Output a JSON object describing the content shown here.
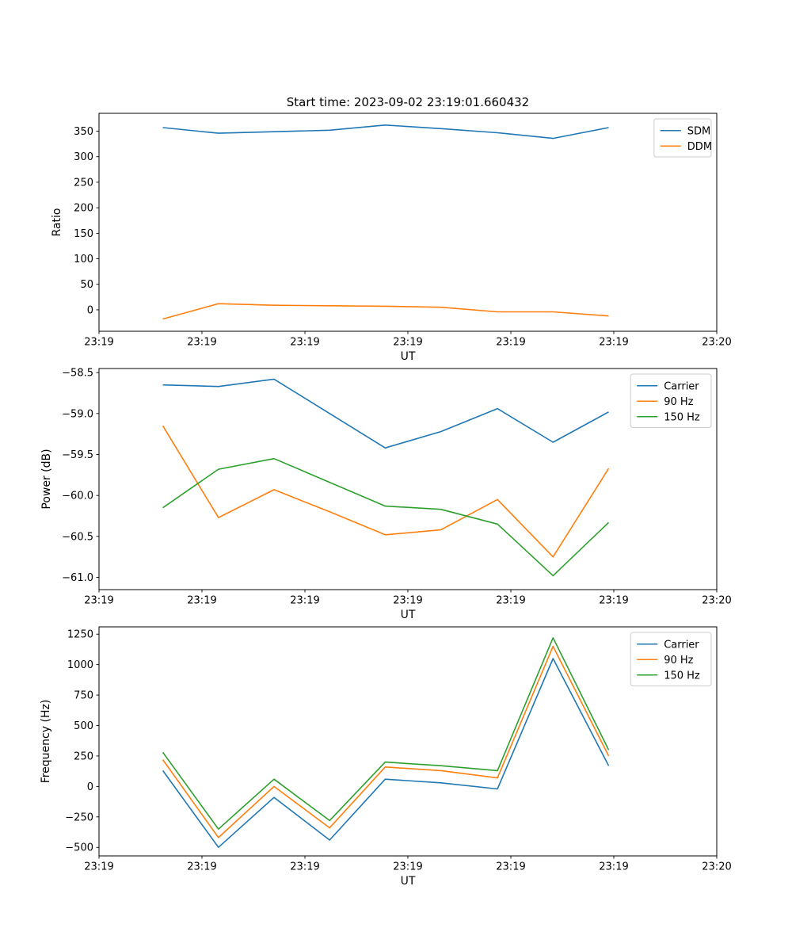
{
  "figure": {
    "title": "Start time: 2023-09-02 23:19:01.660432",
    "background_color": "#ffffff"
  },
  "chart_data": [
    {
      "name": "ratio",
      "type": "line",
      "title": "Start time: 2023-09-02 23:19:01.660432",
      "xlabel": "UT",
      "ylabel": "Ratio",
      "xlim": [
        0,
        60
      ],
      "ylim": [
        -42,
        385
      ],
      "grid": false,
      "x": [
        6.2,
        11.6,
        17.0,
        22.4,
        27.8,
        33.2,
        38.7,
        44.1,
        49.5
      ],
      "xticks": {
        "values": [
          0,
          10,
          20,
          30,
          40,
          50,
          60
        ],
        "labels": [
          "23:19",
          "23:19",
          "23:19",
          "23:19",
          "23:19",
          "23:19",
          "23:20"
        ]
      },
      "yticks": {
        "values": [
          0,
          50,
          100,
          150,
          200,
          250,
          300,
          350
        ],
        "labels": [
          "0",
          "50",
          "100",
          "150",
          "200",
          "250",
          "300",
          "350"
        ]
      },
      "legend": {
        "position": "upper right",
        "entries": [
          "SDM",
          "DDM"
        ]
      },
      "series": [
        {
          "name": "SDM",
          "color": "#1f77b4",
          "values": [
            357,
            346,
            349,
            352,
            362,
            355,
            347,
            336,
            357
          ]
        },
        {
          "name": "DDM",
          "color": "#ff7f0e",
          "values": [
            -18,
            12,
            9,
            8,
            7,
            5,
            -4,
            -4,
            -12
          ]
        }
      ]
    },
    {
      "name": "power",
      "type": "line",
      "title": "",
      "xlabel": "UT",
      "ylabel": "Power (dB)",
      "xlim": [
        0,
        60
      ],
      "ylim": [
        -61.15,
        -58.45
      ],
      "grid": false,
      "x": [
        6.2,
        11.6,
        17.0,
        22.4,
        27.8,
        33.2,
        38.7,
        44.1,
        49.5
      ],
      "xticks": {
        "values": [
          0,
          10,
          20,
          30,
          40,
          50,
          60
        ],
        "labels": [
          "23:19",
          "23:19",
          "23:19",
          "23:19",
          "23:19",
          "23:19",
          "23:20"
        ]
      },
      "yticks": {
        "values": [
          -58.5,
          -59.0,
          -59.5,
          -60.0,
          -60.5,
          -61.0
        ],
        "labels": [
          "−58.5",
          "−59.0",
          "−59.5",
          "−60.0",
          "−60.5",
          "−61.0"
        ]
      },
      "legend": {
        "position": "upper right",
        "entries": [
          "Carrier",
          "90 Hz",
          "150 Hz"
        ]
      },
      "series": [
        {
          "name": "Carrier",
          "color": "#1f77b4",
          "values": [
            -58.65,
            -58.67,
            -58.58,
            -59.0,
            -59.42,
            -59.22,
            -58.94,
            -59.35,
            -58.98
          ]
        },
        {
          "name": "90 Hz",
          "color": "#ff7f0e",
          "values": [
            -59.15,
            -60.27,
            -59.93,
            -60.2,
            -60.48,
            -60.42,
            -60.05,
            -60.75,
            -59.67
          ]
        },
        {
          "name": "150 Hz",
          "color": "#2ca02c",
          "values": [
            -60.15,
            -59.68,
            -59.55,
            -59.84,
            -60.13,
            -60.17,
            -60.35,
            -60.98,
            -60.33
          ]
        }
      ]
    },
    {
      "name": "frequency",
      "type": "line",
      "title": "",
      "xlabel": "UT",
      "ylabel": "Frequency (Hz)",
      "xlim": [
        0,
        60
      ],
      "ylim": [
        -570,
        1310
      ],
      "grid": false,
      "x": [
        6.2,
        11.6,
        17.0,
        22.4,
        27.8,
        33.2,
        38.7,
        44.1,
        49.5
      ],
      "xticks": {
        "values": [
          0,
          10,
          20,
          30,
          40,
          50,
          60
        ],
        "labels": [
          "23:19",
          "23:19",
          "23:19",
          "23:19",
          "23:19",
          "23:19",
          "23:20"
        ]
      },
      "yticks": {
        "values": [
          -500,
          -250,
          0,
          250,
          500,
          750,
          1000,
          1250
        ],
        "labels": [
          "−500",
          "−250",
          "0",
          "250",
          "500",
          "750",
          "1000",
          "1250"
        ]
      },
      "legend": {
        "position": "upper right",
        "entries": [
          "Carrier",
          "90 Hz",
          "150 Hz"
        ]
      },
      "series": [
        {
          "name": "Carrier",
          "color": "#1f77b4",
          "values": [
            130,
            -500,
            -90,
            -440,
            60,
            30,
            -20,
            1050,
            170
          ]
        },
        {
          "name": "90 Hz",
          "color": "#ff7f0e",
          "values": [
            220,
            -420,
            0,
            -340,
            160,
            130,
            70,
            1150,
            250
          ]
        },
        {
          "name": "150 Hz",
          "color": "#2ca02c",
          "values": [
            280,
            -350,
            60,
            -280,
            200,
            170,
            130,
            1220,
            300
          ]
        }
      ]
    }
  ]
}
